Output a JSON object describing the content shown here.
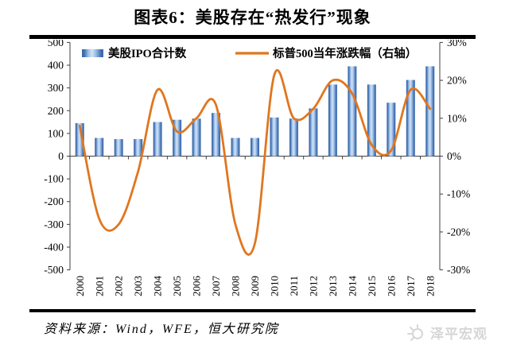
{
  "title": "图表6：美股存在“热发行”现象",
  "footer": {
    "source": "资料来源：Wind，WFE，恒大研究院",
    "watermark": "泽平宏观"
  },
  "chart_data": {
    "type": "bar",
    "subtype": "combo_bar_line_dual_axis",
    "categories": [
      "2000",
      "2001",
      "2002",
      "2003",
      "2004",
      "2005",
      "2006",
      "2007",
      "2008",
      "2009",
      "2010",
      "2011",
      "2012",
      "2013",
      "2014",
      "2015",
      "2016",
      "2017",
      "2018"
    ],
    "series": [
      {
        "name": "美股IPO合计数",
        "type": "bar",
        "axis": "left",
        "values": [
          145,
          80,
          75,
          75,
          150,
          160,
          165,
          190,
          80,
          80,
          170,
          165,
          210,
          315,
          395,
          315,
          235,
          335,
          395
        ]
      },
      {
        "name": "标普500当年涨跌幅（右轴）",
        "type": "line",
        "axis": "right",
        "unit": "%",
        "values": [
          8,
          -16.5,
          -18,
          -4,
          17.5,
          6.5,
          10,
          13.5,
          -18,
          -23,
          21.5,
          10,
          12.5,
          20,
          16.5,
          3,
          1.5,
          17.5,
          12.5
        ]
      }
    ],
    "left_axis": {
      "min": -500,
      "max": 500,
      "labels": [
        "500",
        "400",
        "300",
        "200",
        "100",
        "0",
        "-100",
        "-200",
        "-300",
        "-400",
        "-500"
      ],
      "values": [
        500,
        400,
        300,
        200,
        100,
        0,
        -100,
        -200,
        -300,
        -400,
        -500
      ]
    },
    "right_axis": {
      "min": -30,
      "max": 30,
      "labels": [
        "30%",
        "20%",
        "10%",
        "0%",
        "-10%",
        "-20%",
        "-30%"
      ],
      "values": [
        30,
        20,
        10,
        0,
        -10,
        -20,
        -30
      ]
    },
    "legend_position": "top",
    "grid": false,
    "colors": {
      "bar_edge": "#3d6cae",
      "bar_mid": "#9dbfe6",
      "bar_highlight": "#d3e3f6",
      "line": "#e0761f",
      "axis": "#3f3f3f",
      "text": "#000000"
    }
  }
}
